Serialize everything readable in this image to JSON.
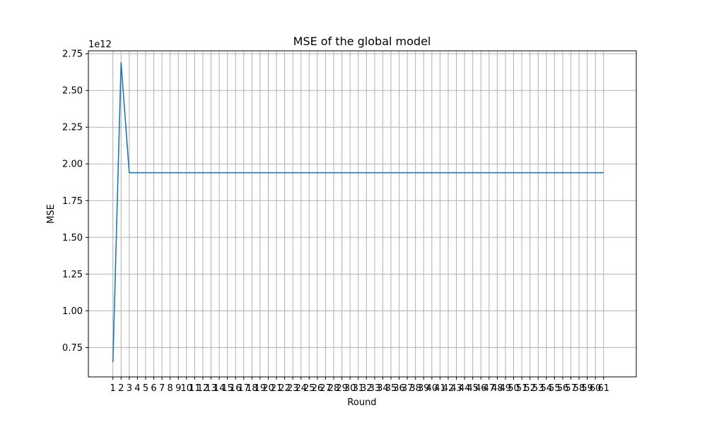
{
  "chart_data": {
    "type": "line",
    "title": "MSE of the global model",
    "xlabel": "Round",
    "ylabel": "MSE",
    "y_offset_label": "1e12",
    "y_scale_factor": 1000000000000.0,
    "xlim": [
      -2.0,
      65.0
    ],
    "ylim": [
      0.55,
      2.77
    ],
    "grid": true,
    "legend": "none",
    "x_ticks": [
      1,
      2,
      3,
      4,
      5,
      6,
      7,
      8,
      9,
      10,
      11,
      12,
      13,
      14,
      15,
      16,
      17,
      18,
      19,
      20,
      21,
      22,
      23,
      24,
      25,
      26,
      27,
      28,
      29,
      30,
      31,
      32,
      33,
      34,
      35,
      36,
      37,
      38,
      39,
      40,
      41,
      42,
      43,
      44,
      45,
      46,
      47,
      48,
      49,
      50,
      51,
      52,
      53,
      54,
      55,
      56,
      57,
      58,
      59,
      60,
      61
    ],
    "y_ticks": [
      0.75,
      1.0,
      1.25,
      1.5,
      1.75,
      2.0,
      2.25,
      2.5,
      2.75
    ],
    "y_tick_labels": [
      "0.75",
      "1.00",
      "1.25",
      "1.50",
      "1.75",
      "2.00",
      "2.25",
      "2.50",
      "2.75"
    ],
    "colors": {
      "line": "#1f77b4",
      "grid": "#b0b0b0",
      "axes": "#000000",
      "background": "#ffffff"
    },
    "series": [
      {
        "x": [
          1,
          2,
          3,
          4,
          5,
          6,
          7,
          8,
          9,
          10,
          11,
          12,
          13,
          14,
          15,
          16,
          17,
          18,
          19,
          20,
          21,
          22,
          23,
          24,
          25,
          26,
          27,
          28,
          29,
          30,
          31,
          32,
          33,
          34,
          35,
          36,
          37,
          38,
          39,
          40,
          41,
          42,
          43,
          44,
          45,
          46,
          47,
          48,
          49,
          50,
          51,
          52,
          53,
          54,
          55,
          56,
          57,
          58,
          59,
          60,
          61
        ],
        "values": [
          0.65,
          2.69,
          1.94,
          1.94,
          1.94,
          1.94,
          1.94,
          1.94,
          1.94,
          1.94,
          1.94,
          1.94,
          1.94,
          1.94,
          1.94,
          1.94,
          1.94,
          1.94,
          1.94,
          1.94,
          1.94,
          1.94,
          1.94,
          1.94,
          1.94,
          1.94,
          1.94,
          1.94,
          1.94,
          1.94,
          1.94,
          1.94,
          1.94,
          1.94,
          1.94,
          1.94,
          1.94,
          1.94,
          1.94,
          1.94,
          1.94,
          1.94,
          1.94,
          1.94,
          1.94,
          1.94,
          1.94,
          1.94,
          1.94,
          1.94,
          1.94,
          1.94,
          1.94,
          1.94,
          1.94,
          1.94,
          1.94,
          1.94,
          1.94,
          1.94,
          1.94
        ]
      }
    ]
  }
}
